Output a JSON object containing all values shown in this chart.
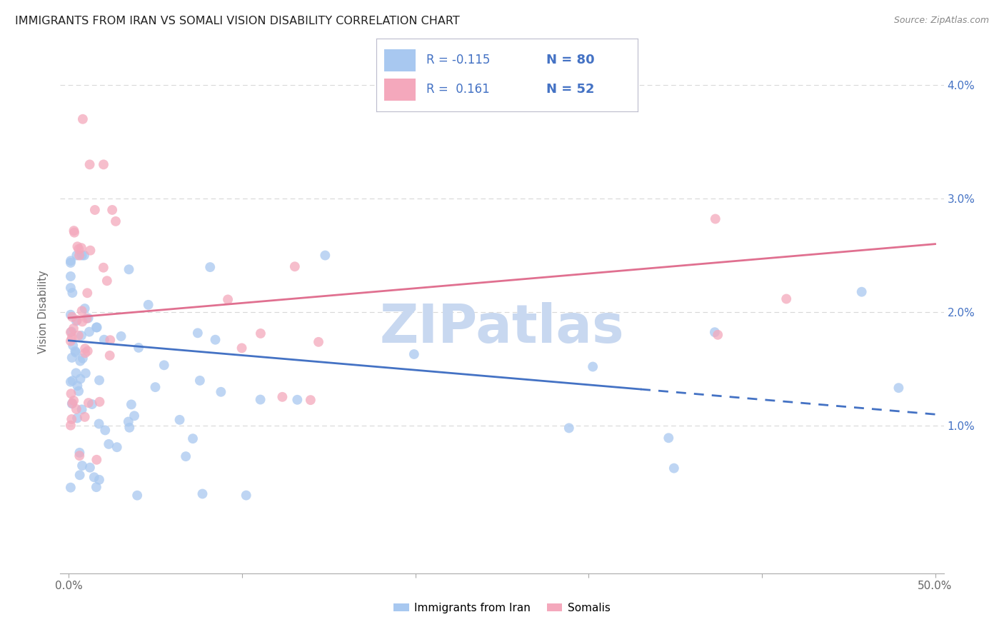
{
  "title": "IMMIGRANTS FROM IRAN VS SOMALI VISION DISABILITY CORRELATION CHART",
  "source": "Source: ZipAtlas.com",
  "ylabel": "Vision Disability",
  "legend_iran_label": "Immigrants from Iran",
  "legend_somali_label": "Somalis",
  "iran_R": "-0.115",
  "iran_N": "80",
  "somali_R": "0.161",
  "somali_N": "52",
  "iran_color": "#a8c8f0",
  "somali_color": "#f4a8bc",
  "iran_line_color": "#4472c4",
  "somali_line_color": "#e07090",
  "legend_text_color": "#4472c4",
  "background_color": "#ffffff",
  "grid_color": "#d8d8d8",
  "watermark_color": "#c8d8f0",
  "title_color": "#222222",
  "source_color": "#888888",
  "axis_color": "#aaaaaa",
  "ylabel_color": "#666666",
  "ytick_color": "#4472c4",
  "xtick_color": "#666666"
}
